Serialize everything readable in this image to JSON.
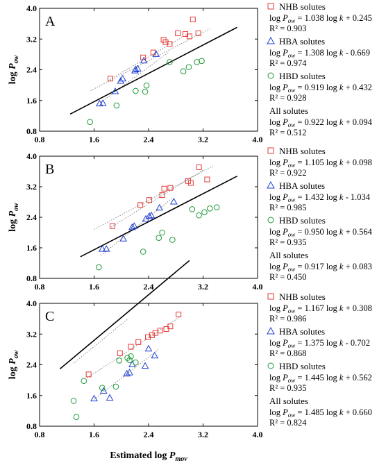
{
  "figure": {
    "xlabel_main": "Estimated log ",
    "xlabel_italic": "P",
    "xlabel_sub": "mov",
    "ylabel_italic": "P",
    "ylabel_main": "log ",
    "ylabel_sub": "ow"
  },
  "colors": {
    "nhb": "#e53935",
    "hba": "#1e3fd0",
    "hbd": "#1f9a3a",
    "all": "#000000",
    "fit_dotted": "#888888"
  },
  "chart_data": [
    {
      "type": "scatter",
      "panel": "A",
      "xlim": [
        0.8,
        4.0
      ],
      "ylim": [
        0.8,
        4.0
      ],
      "xticks": [
        "0.8",
        "1.6",
        "2.4",
        "3.2",
        "4.0"
      ],
      "yticks": [
        "0.8",
        "1.6",
        "2.4",
        "3.2",
        "4.0"
      ],
      "grid": false,
      "legend_position": "right",
      "series": [
        {
          "name": "NHB solutes",
          "marker": "square",
          "eq_lhs": "log P",
          "eq_sub": "ow",
          "eq_rhs": " = 1.038 log k + 0.245",
          "r2": "R² = 0.903",
          "fit": {
            "slope": 1.038,
            "intercept": 0.245,
            "x_range": [
              1.8,
              3.0
            ]
          },
          "x": [
            1.84,
            2.32,
            2.47,
            2.62,
            2.65,
            2.71,
            2.83,
            2.94,
            3.0,
            3.05,
            3.13
          ],
          "y": [
            2.17,
            2.72,
            2.85,
            3.18,
            3.12,
            3.07,
            3.35,
            3.33,
            3.27,
            3.71,
            3.35
          ]
        },
        {
          "name": "HBA solutes",
          "marker": "triangle",
          "eq_lhs": "log P",
          "eq_sub": "ow",
          "eq_rhs": " = 1.308 log k - 0.669",
          "r2": "R² = 0.974",
          "fit": {
            "slope": 1.308,
            "intercept": -0.669,
            "x_range": [
              1.7,
              2.7
            ]
          },
          "x": [
            1.68,
            1.73,
            1.91,
            1.99,
            2.02,
            2.2,
            2.21,
            2.24,
            2.33,
            2.51
          ],
          "y": [
            1.52,
            1.53,
            1.84,
            2.11,
            2.17,
            2.38,
            2.41,
            2.43,
            2.64,
            2.81
          ]
        },
        {
          "name": "HBD solutes",
          "marker": "circle",
          "eq_lhs": "log P",
          "eq_sub": "ow",
          "eq_rhs": " = 0.919 log k + 0.432",
          "r2": "R² = 0.928",
          "fit": {
            "slope": 0.919,
            "intercept": 0.432,
            "x_range": [
              1.55,
              3.3
            ]
          },
          "x": [
            1.54,
            1.93,
            2.21,
            2.35,
            2.37,
            2.71,
            2.91,
            2.99,
            3.11,
            3.18
          ],
          "y": [
            1.04,
            1.47,
            1.85,
            1.83,
            1.99,
            2.6,
            2.36,
            2.47,
            2.6,
            2.63
          ]
        },
        {
          "name": "All solutes",
          "marker": "none",
          "eq_lhs": "log P",
          "eq_sub": "ow",
          "eq_rhs": " = 0.922 log k + 0.094",
          "r2": "R² = 0.512",
          "fit": {
            "slope": 0.922,
            "intercept": 0.094,
            "x_range": [
              1.25,
              3.7
            ]
          }
        }
      ]
    },
    {
      "type": "scatter",
      "panel": "B",
      "xlim": [
        0.8,
        4.0
      ],
      "ylim": [
        0.8,
        4.0
      ],
      "xticks": [
        "0.8",
        "1.6",
        "2.4",
        "3.2",
        "4.0"
      ],
      "yticks": [
        "0.8",
        "1.6",
        "2.4",
        "3.2",
        "4.0"
      ],
      "grid": false,
      "legend_position": "right",
      "series": [
        {
          "name": "NHB solutes",
          "marker": "square",
          "eq_lhs": "log P",
          "eq_sub": "ow",
          "eq_rhs": " = 1.105 log k + 0.098",
          "r2": "R² = 0.922",
          "fit": {
            "slope": 1.105,
            "intercept": 0.098,
            "x_range": [
              1.85,
              3.2
            ]
          },
          "x": [
            1.87,
            2.28,
            2.41,
            2.6,
            2.63,
            2.72,
            2.98,
            3.02,
            3.14,
            3.26
          ],
          "y": [
            2.17,
            2.72,
            2.85,
            2.98,
            3.15,
            3.17,
            3.35,
            3.3,
            3.71,
            3.39
          ]
        },
        {
          "name": "HBA solutes",
          "marker": "triangle",
          "eq_lhs": "log P",
          "eq_sub": "ow",
          "eq_rhs": " = 1.432 log k - 1.034",
          "r2": "R² = 0.985",
          "fit": {
            "slope": 1.432,
            "intercept": -1.034,
            "x_range": [
              1.7,
              2.75
            ]
          },
          "x": [
            1.72,
            1.78,
            2.03,
            2.16,
            2.19,
            2.36,
            2.41,
            2.44,
            2.56,
            2.77
          ],
          "y": [
            1.57,
            1.57,
            1.84,
            2.14,
            2.17,
            2.36,
            2.43,
            2.45,
            2.65,
            2.81
          ]
        },
        {
          "name": "HBD solutes",
          "marker": "circle",
          "eq_lhs": "log P",
          "eq_sub": "ow",
          "eq_rhs": " = 0.950 log k + 0.564",
          "r2": "R² = 0.935",
          "fit": {
            "slope": 0.95,
            "intercept": 0.564,
            "x_range": [
              1.6,
              3.35
            ]
          },
          "x": [
            1.67,
            2.32,
            2.55,
            2.6,
            2.75,
            3.04,
            3.14,
            3.22,
            3.3,
            3.4
          ],
          "y": [
            1.09,
            1.5,
            1.86,
            2.0,
            1.81,
            2.61,
            2.45,
            2.53,
            2.63,
            2.66
          ]
        },
        {
          "name": "All solutes",
          "marker": "none",
          "eq_lhs": "log P",
          "eq_sub": "ow",
          "eq_rhs": " = 0.917 log k + 0.083",
          "r2": "R² = 0.450",
          "fit": {
            "slope": 0.917,
            "intercept": 0.083,
            "x_range": [
              1.4,
              3.7
            ]
          }
        }
      ]
    },
    {
      "type": "scatter",
      "panel": "C",
      "xlim": [
        0.8,
        4.0
      ],
      "ylim": [
        0.8,
        4.0
      ],
      "xticks": [
        "0.8",
        "1.6",
        "2.4",
        "3.2",
        "4.0"
      ],
      "yticks": [
        "0.8",
        "1.6",
        "2.4",
        "3.2",
        "4.0"
      ],
      "grid": false,
      "legend_position": "right",
      "series": [
        {
          "name": "NHB solutes",
          "marker": "square",
          "eq_lhs": "log P",
          "eq_sub": "ow",
          "eq_rhs": " = 1.167 log k + 0.308",
          "r2": "R² = 0.986",
          "fit": {
            "slope": 1.167,
            "intercept": 0.308,
            "x_range": [
              1.5,
              2.85
            ]
          },
          "x": [
            1.52,
            1.98,
            2.14,
            2.25,
            2.39,
            2.45,
            2.5,
            2.57,
            2.66,
            2.72,
            2.84
          ],
          "y": [
            2.15,
            2.7,
            2.87,
            2.99,
            3.12,
            3.17,
            3.23,
            3.29,
            3.33,
            3.4,
            3.71
          ]
        },
        {
          "name": "HBA solutes",
          "marker": "triangle",
          "eq_lhs": "log P",
          "eq_sub": "ow",
          "eq_rhs": " = 1.375 log k - 0.702",
          "r2": "R² = 0.868",
          "fit": {
            "slope": 1.375,
            "intercept": -0.702,
            "x_range": [
              1.6,
              2.55
            ]
          },
          "x": [
            1.6,
            1.74,
            1.83,
            2.08,
            2.12,
            2.16,
            2.35,
            2.4,
            2.49
          ],
          "y": [
            1.52,
            1.72,
            1.54,
            2.17,
            2.2,
            2.41,
            2.37,
            2.82,
            2.64
          ]
        },
        {
          "name": "HBD solutes",
          "marker": "circle",
          "eq_lhs": "log P",
          "eq_sub": "ow",
          "eq_rhs": " = 1.445 log k + 0.562",
          "r2": "R² = 0.935",
          "fit": {
            "slope": 1.445,
            "intercept": 0.562,
            "x_range": [
              1.3,
              2.1
            ]
          },
          "x": [
            1.3,
            1.34,
            1.45,
            1.72,
            1.92,
            1.97,
            2.09,
            2.12,
            2.14,
            2.21
          ],
          "y": [
            1.46,
            1.04,
            1.98,
            1.8,
            1.83,
            2.51,
            2.58,
            2.52,
            2.62,
            2.46
          ]
        },
        {
          "name": "All solutes",
          "marker": "none",
          "eq_lhs": "log P",
          "eq_sub": "ow",
          "eq_rhs": " = 1.485 log k + 0.660",
          "r2": "R² = 0.824",
          "fit": {
            "slope": 1.485,
            "intercept": 0.66,
            "x_range": [
              1.1,
              3.0
            ]
          }
        }
      ]
    }
  ]
}
